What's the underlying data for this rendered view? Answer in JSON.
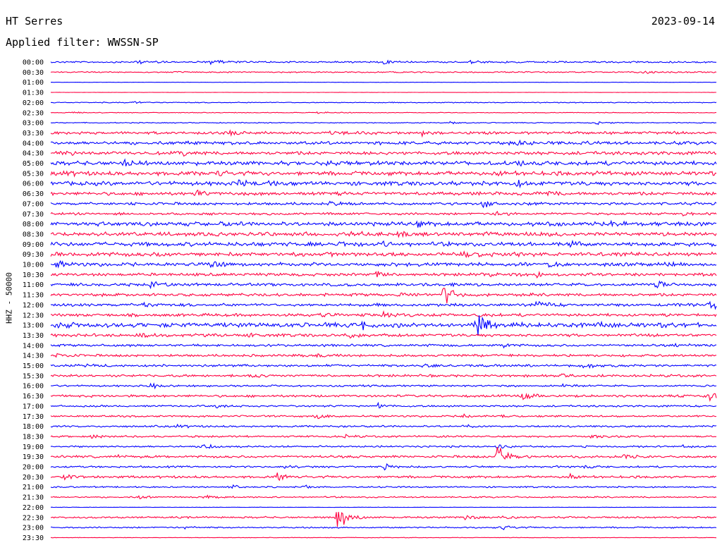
{
  "header": {
    "station": "HT Serres",
    "date": "2023-09-14",
    "filter": "Applied filter: WWSSN-SP"
  },
  "chart_data": {
    "type": "line",
    "title": "HT Serres",
    "subtitle": "Applied filter: WWSSN-SP",
    "ylabel": "HHZ - 50000",
    "grid": false,
    "colors": [
      "#0000ff",
      "#ff0040"
    ],
    "rows": [
      {
        "label": "00:00",
        "noise": 0.9,
        "events": [
          [
            0.24,
            5
          ],
          [
            0.5,
            3
          ],
          [
            0.13,
            2.5
          ],
          [
            0.63,
            2.5
          ]
        ]
      },
      {
        "label": "00:30",
        "noise": 0.7,
        "events": [
          [
            0.89,
            2.5
          ]
        ]
      },
      {
        "label": "01:00",
        "noise": 0.15,
        "events": []
      },
      {
        "label": "01:30",
        "noise": 0.15,
        "events": []
      },
      {
        "label": "02:00",
        "noise": 0.5,
        "events": [
          [
            0.12,
            2
          ]
        ]
      },
      {
        "label": "02:30",
        "noise": 0.4,
        "events": [
          [
            0.03,
            2
          ],
          [
            0.4,
            1.5
          ]
        ]
      },
      {
        "label": "03:00",
        "noise": 0.5,
        "events": [
          [
            0.82,
            2.5
          ],
          [
            0.6,
            1.5
          ]
        ]
      },
      {
        "label": "03:30",
        "noise": 1.5,
        "events": [
          [
            0.27,
            3
          ],
          [
            0.55,
            5
          ],
          [
            0.42,
            2
          ]
        ]
      },
      {
        "label": "04:00",
        "noise": 1.8,
        "events": [
          [
            0.7,
            2.5
          ],
          [
            0.8,
            2
          ]
        ]
      },
      {
        "label": "04:30",
        "noise": 1.8,
        "events": [
          [
            0.02,
            4
          ],
          [
            0.2,
            2.5
          ]
        ]
      },
      {
        "label": "05:00",
        "noise": 2.2,
        "events": [
          [
            0.11,
            4
          ],
          [
            0.4,
            2.5
          ],
          [
            0.7,
            2.5
          ]
        ]
      },
      {
        "label": "05:30",
        "noise": 2.2,
        "events": [
          [
            0.02,
            3
          ],
          [
            0.25,
            3
          ],
          [
            0.67,
            3
          ],
          [
            0.82,
            3
          ]
        ]
      },
      {
        "label": "06:00",
        "noise": 2.2,
        "events": [
          [
            0.28,
            3.5
          ],
          [
            0.7,
            3
          ],
          [
            0.33,
            2.5
          ]
        ]
      },
      {
        "label": "06:30",
        "noise": 1.8,
        "events": [
          [
            0.22,
            3.5
          ],
          [
            0.75,
            2.5
          ]
        ]
      },
      {
        "label": "07:00",
        "noise": 1.5,
        "events": [
          [
            0.65,
            4
          ],
          [
            0.12,
            2
          ],
          [
            0.42,
            2
          ]
        ]
      },
      {
        "label": "07:30",
        "noise": 1.3,
        "events": [
          [
            0.67,
            3
          ],
          [
            0.95,
            2
          ]
        ]
      },
      {
        "label": "08:00",
        "noise": 2.2,
        "events": [
          [
            0.84,
            3
          ],
          [
            0.55,
            3
          ],
          [
            0.25,
            2
          ]
        ]
      },
      {
        "label": "08:30",
        "noise": 2.2,
        "events": [
          [
            0.52,
            3
          ],
          [
            0.45,
            2.5
          ]
        ]
      },
      {
        "label": "09:00",
        "noise": 2.2,
        "events": [
          [
            0.43,
            3
          ],
          [
            0.5,
            2.5
          ],
          [
            0.78,
            2.5
          ]
        ]
      },
      {
        "label": "09:30",
        "noise": 2.2,
        "events": [
          [
            0.05,
            3
          ],
          [
            0.16,
            2.5
          ],
          [
            0.62,
            2
          ]
        ]
      },
      {
        "label": "10:00",
        "noise": 2.0,
        "events": [
          [
            0.01,
            4
          ],
          [
            0.24,
            3
          ],
          [
            0.75,
            3
          ],
          [
            0.93,
            2.5
          ]
        ]
      },
      {
        "label": "10:30",
        "noise": 1.6,
        "events": [
          [
            0.49,
            4
          ],
          [
            0.65,
            2.5
          ],
          [
            0.73,
            2.5
          ]
        ]
      },
      {
        "label": "11:00",
        "noise": 1.6,
        "events": [
          [
            0.15,
            5
          ],
          [
            0.91,
            4
          ],
          [
            0.6,
            2.5
          ]
        ]
      },
      {
        "label": "11:30",
        "noise": 1.6,
        "events": [
          [
            0.59,
            13
          ],
          [
            0.52,
            2.5
          ]
        ]
      },
      {
        "label": "12:00",
        "noise": 1.6,
        "events": [
          [
            0.73,
            5
          ],
          [
            0.99,
            5
          ],
          [
            0.14,
            2.5
          ]
        ]
      },
      {
        "label": "12:30",
        "noise": 1.6,
        "events": [
          [
            0.4,
            3
          ],
          [
            0.5,
            3
          ],
          [
            0.64,
            2.5
          ]
        ]
      },
      {
        "label": "13:00",
        "noise": 2.5,
        "events": [
          [
            0.64,
            15
          ],
          [
            0.47,
            6
          ],
          [
            0.82,
            4
          ],
          [
            0.01,
            3
          ]
        ]
      },
      {
        "label": "13:30",
        "noise": 1.6,
        "events": [
          [
            0.13,
            3
          ],
          [
            0.3,
            2.5
          ],
          [
            0.45,
            2.5
          ]
        ]
      },
      {
        "label": "14:00",
        "noise": 1.3,
        "events": [
          [
            0.68,
            3
          ],
          [
            0.94,
            3
          ]
        ]
      },
      {
        "label": "14:30",
        "noise": 1.3,
        "events": [
          [
            0.01,
            5
          ],
          [
            0.4,
            2
          ]
        ]
      },
      {
        "label": "15:00",
        "noise": 1.3,
        "events": [
          [
            0.56,
            3
          ],
          [
            0.8,
            4
          ],
          [
            0.05,
            2
          ]
        ]
      },
      {
        "label": "15:30",
        "noise": 1.3,
        "events": [
          [
            0.76,
            4
          ],
          [
            0.3,
            2.5
          ]
        ]
      },
      {
        "label": "16:00",
        "noise": 1.0,
        "events": [
          [
            0.15,
            3
          ],
          [
            0.77,
            2.5
          ]
        ]
      },
      {
        "label": "16:30",
        "noise": 1.3,
        "events": [
          [
            0.71,
            5
          ],
          [
            0.99,
            5
          ]
        ]
      },
      {
        "label": "17:00",
        "noise": 1.0,
        "events": [
          [
            0.49,
            3.5
          ],
          [
            0.25,
            2
          ]
        ]
      },
      {
        "label": "17:30",
        "noise": 1.0,
        "events": [
          [
            0.4,
            4
          ],
          [
            0.62,
            2.5
          ],
          [
            0.68,
            2.5
          ]
        ]
      },
      {
        "label": "18:00",
        "noise": 1.0,
        "events": [
          [
            0.19,
            2.5
          ],
          [
            0.62,
            2
          ]
        ]
      },
      {
        "label": "18:30",
        "noise": 1.0,
        "events": [
          [
            0.81,
            4
          ],
          [
            0.06,
            2.5
          ],
          [
            0.44,
            2
          ]
        ]
      },
      {
        "label": "19:00",
        "noise": 1.0,
        "events": [
          [
            0.23,
            4
          ],
          [
            0.67,
            3
          ],
          [
            0.95,
            2
          ]
        ]
      },
      {
        "label": "19:30",
        "noise": 1.3,
        "events": [
          [
            0.67,
            18
          ],
          [
            0.86,
            3
          ],
          [
            0.1,
            2
          ]
        ]
      },
      {
        "label": "20:00",
        "noise": 1.0,
        "events": [
          [
            0.5,
            4
          ],
          [
            0.35,
            2.5
          ],
          [
            0.8,
            2
          ]
        ]
      },
      {
        "label": "20:30",
        "noise": 1.3,
        "events": [
          [
            0.34,
            5
          ],
          [
            0.78,
            3
          ],
          [
            0.02,
            2.5
          ]
        ]
      },
      {
        "label": "21:00",
        "noise": 0.8,
        "events": [
          [
            0.27,
            3
          ],
          [
            0.38,
            2
          ]
        ]
      },
      {
        "label": "21:30",
        "noise": 0.8,
        "events": [
          [
            0.23,
            4
          ],
          [
            0.13,
            2
          ]
        ]
      },
      {
        "label": "22:00",
        "noise": 0.2,
        "events": []
      },
      {
        "label": "22:30",
        "noise": 1.0,
        "events": [
          [
            0.43,
            20
          ],
          [
            0.62,
            3
          ],
          [
            0.68,
            2.5
          ]
        ]
      },
      {
        "label": "23:00",
        "noise": 0.8,
        "events": [
          [
            0.68,
            3.5
          ],
          [
            0.2,
            1.5
          ]
        ]
      },
      {
        "label": "23:30",
        "noise": 0.3,
        "events": []
      }
    ]
  }
}
